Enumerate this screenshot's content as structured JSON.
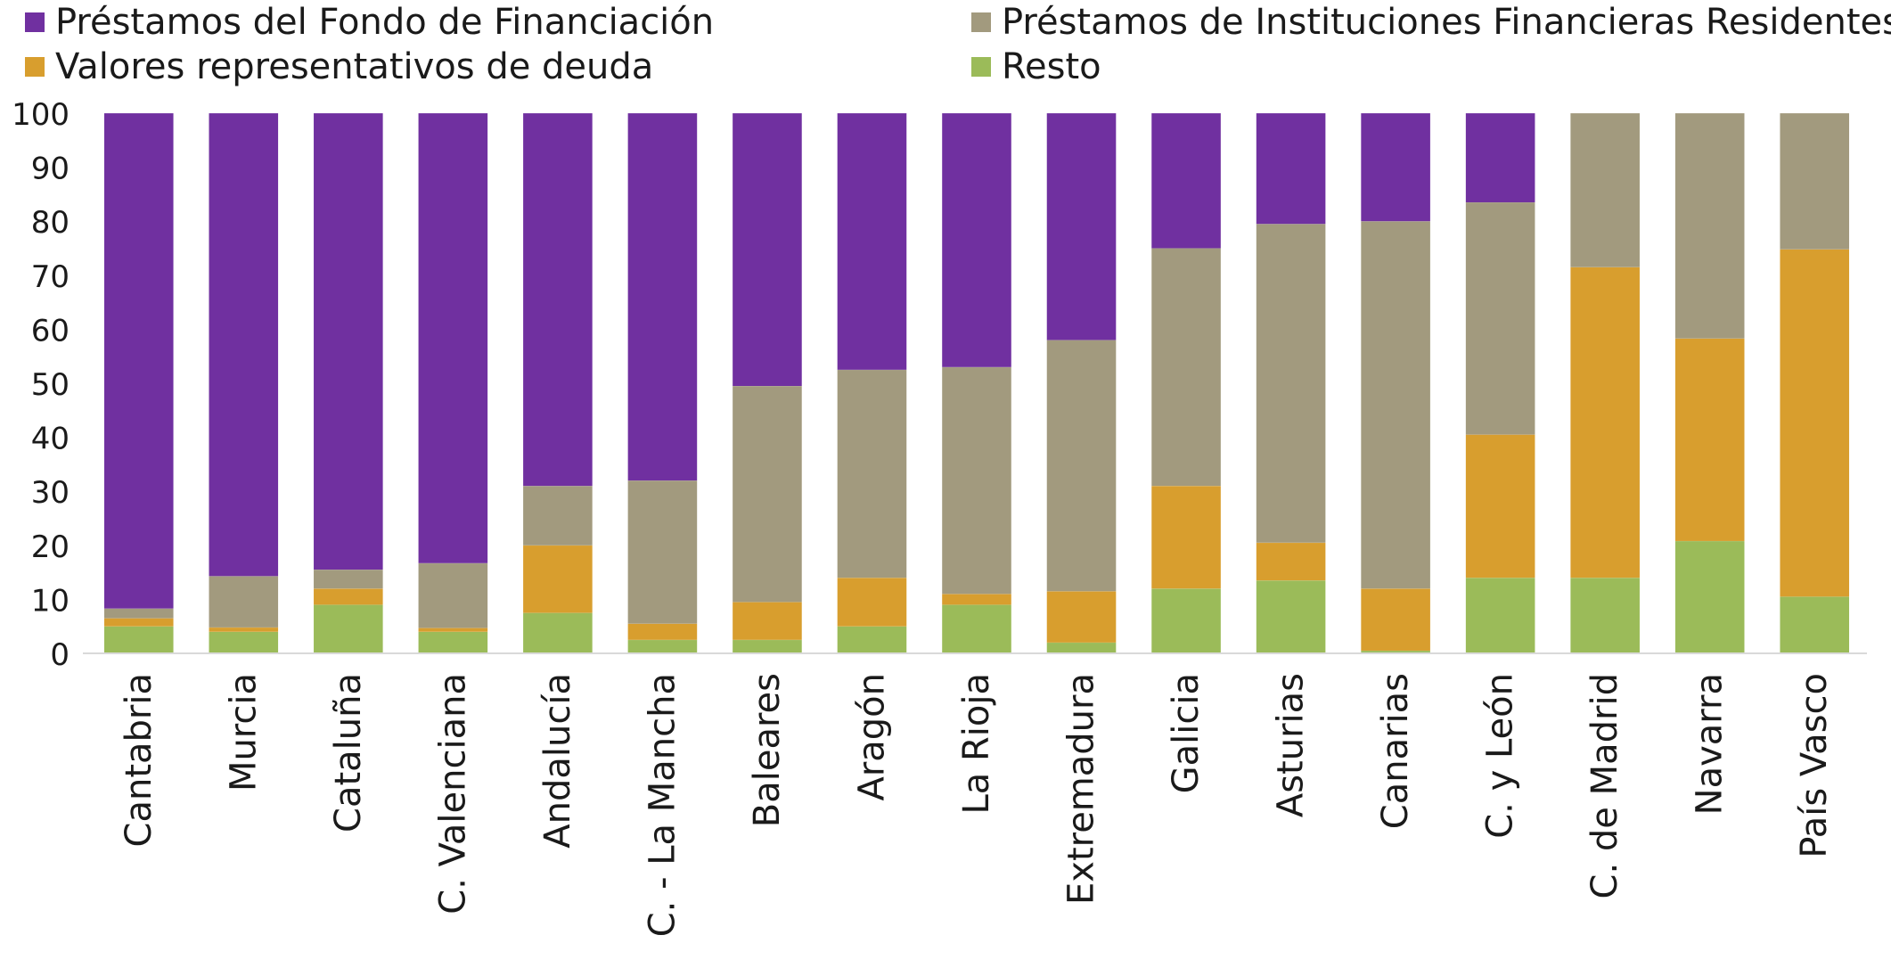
{
  "chart_data": {
    "type": "bar",
    "stacked": true,
    "title": "",
    "xlabel": "",
    "ylabel": "",
    "ylim": [
      0,
      100
    ],
    "yticks": [
      0,
      10,
      20,
      30,
      40,
      50,
      60,
      70,
      80,
      90,
      100
    ],
    "grid": false,
    "legend_position": "top",
    "categories": [
      "Cantabria",
      "Murcia",
      "Cataluña",
      "C. Valenciana",
      "Andalucía",
      "C. - La Mancha",
      "Baleares",
      "Aragón",
      "La Rioja",
      "Extremadura",
      "Galicia",
      "Asturias",
      "Canarias",
      "C. y León",
      "C. de Madrid",
      "Navarra",
      "País Vasco"
    ],
    "series": [
      {
        "name": "Resto",
        "color": "#9BBB59",
        "values": [
          5,
          4,
          9,
          4,
          7.5,
          2.5,
          2.5,
          5,
          9,
          2,
          12,
          13.5,
          0.5,
          14,
          14,
          20.8,
          10.5
        ]
      },
      {
        "name": "Valores representativos de deuda",
        "color": "#D89E2E",
        "values": [
          1.5,
          0.8,
          3,
          0.7,
          12.5,
          3,
          7,
          9,
          2,
          9.5,
          19,
          7,
          11.5,
          26.5,
          57.5,
          37.5,
          64.3
        ]
      },
      {
        "name": "Préstamos de Instituciones Financieras Residentes",
        "color": "#A29A7E",
        "values": [
          1.8,
          9.5,
          3.5,
          12,
          11,
          26.5,
          40,
          38.5,
          42,
          46.5,
          44,
          59,
          68,
          43,
          28.5,
          41.7,
          25.2
        ]
      },
      {
        "name": "Préstamos del Fondo de Financiación",
        "color": "#7030A0",
        "values": [
          91.7,
          85.7,
          84.5,
          83.3,
          69,
          68,
          50.5,
          47.5,
          47,
          42,
          25,
          20.5,
          20,
          16.5,
          0,
          0,
          0
        ]
      }
    ]
  },
  "legend": [
    {
      "label": "Préstamos del Fondo de Financiación",
      "color": "#7030A0"
    },
    {
      "label": "Préstamos de Instituciones Financieras Residentes",
      "color": "#A29A7E"
    },
    {
      "label": "Valores representativos de deuda",
      "color": "#D89E2E"
    },
    {
      "label": "Resto",
      "color": "#9BBB59"
    }
  ]
}
